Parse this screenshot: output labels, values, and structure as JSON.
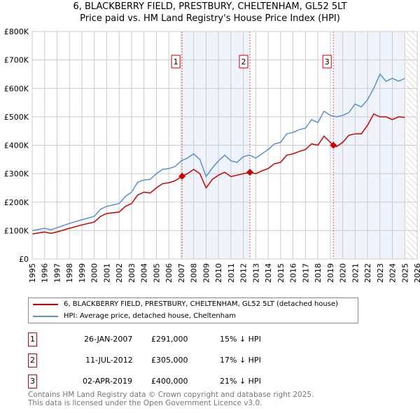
{
  "title": "6, BLACKBERRY FIELD, PRESTBURY, CHELTENHAM, GL52 5LT",
  "subtitle": "Price paid vs. HM Land Registry's House Price Index (HPI)",
  "colors": {
    "price": "#cc0000",
    "hpi": "#5b8fd0",
    "shade": "#eef3fc"
  },
  "chart_data": {
    "type": "line",
    "title": "Price paid vs. HM Land Registry's House Price Index (HPI)",
    "xlim": [
      1995,
      2026
    ],
    "ylim": [
      0,
      800000
    ],
    "xticks": [
      "1995",
      "1996",
      "1997",
      "1998",
      "1999",
      "2000",
      "2001",
      "2002",
      "2003",
      "2004",
      "2005",
      "2006",
      "2007",
      "2008",
      "2009",
      "2010",
      "2011",
      "2012",
      "2013",
      "2014",
      "2015",
      "2016",
      "2017",
      "2018",
      "2019",
      "2020",
      "2021",
      "2022",
      "2023",
      "2024",
      "2025",
      "2026"
    ],
    "yticks": [
      {
        "v": 0,
        "label": "£0"
      },
      {
        "v": 100000,
        "label": "£100K"
      },
      {
        "v": 200000,
        "label": "£200K"
      },
      {
        "v": 300000,
        "label": "£300K"
      },
      {
        "v": 400000,
        "label": "£400K"
      },
      {
        "v": 500000,
        "label": "£500K"
      },
      {
        "v": 600000,
        "label": "£600K"
      },
      {
        "v": 700000,
        "label": "£700K"
      },
      {
        "v": 800000,
        "label": "£800K"
      }
    ],
    "grid": true,
    "series": [
      {
        "name": "6, BLACKBERRY FIELD, PRESTBURY, CHELTENHAM, GL52 5LT (detached house)",
        "x": [
          1995,
          1996,
          1996.5,
          1997,
          1998,
          1999,
          2000,
          2000.5,
          2001,
          2002,
          2002.5,
          2003,
          2003.5,
          2004,
          2004.5,
          2005,
          2005.5,
          2006,
          2006.5,
          2007.07,
          2007.5,
          2008,
          2008.5,
          2009,
          2009.5,
          2010,
          2010.5,
          2011,
          2011.5,
          2012.53,
          2013,
          2013.5,
          2014,
          2014.5,
          2015,
          2015.5,
          2016,
          2016.5,
          2017,
          2017.5,
          2018,
          2018.5,
          2019.25,
          2019.5,
          2020,
          2020.5,
          2021,
          2021.5,
          2022,
          2022.5,
          2023,
          2023.5,
          2024,
          2024.5,
          2025
        ],
        "y": [
          88000,
          95000,
          90000,
          95000,
          108000,
          120000,
          130000,
          150000,
          160000,
          165000,
          185000,
          195000,
          225000,
          235000,
          232000,
          250000,
          265000,
          268000,
          275000,
          291000,
          300000,
          315000,
          300000,
          250000,
          280000,
          295000,
          305000,
          290000,
          295000,
          305000,
          300000,
          310000,
          318000,
          335000,
          340000,
          365000,
          370000,
          378000,
          385000,
          405000,
          400000,
          432000,
          400000,
          395000,
          410000,
          435000,
          440000,
          440000,
          470000,
          510000,
          500000,
          500000,
          490000,
          500000,
          498000
        ]
      },
      {
        "name": "HPI: Average price, detached house, Cheltenham",
        "x": [
          1995,
          1996,
          1996.5,
          1997,
          1998,
          1999,
          2000,
          2000.5,
          2001,
          2002,
          2002.5,
          2003,
          2003.5,
          2004,
          2004.5,
          2005,
          2005.5,
          2006,
          2006.5,
          2007,
          2007.5,
          2008,
          2008.5,
          2009,
          2009.5,
          2010,
          2010.5,
          2011,
          2011.5,
          2012,
          2012.5,
          2013,
          2013.5,
          2014,
          2014.5,
          2015,
          2015.5,
          2016,
          2016.5,
          2017,
          2017.5,
          2018,
          2018.5,
          2019,
          2019.5,
          2020,
          2020.5,
          2021,
          2021.5,
          2022,
          2022.5,
          2023,
          2023.5,
          2024,
          2024.5,
          2025
        ],
        "y": [
          100000,
          108000,
          103000,
          110000,
          125000,
          138000,
          150000,
          175000,
          185000,
          195000,
          220000,
          235000,
          270000,
          278000,
          280000,
          300000,
          315000,
          318000,
          325000,
          345000,
          355000,
          370000,
          350000,
          290000,
          320000,
          345000,
          365000,
          345000,
          340000,
          360000,
          365000,
          355000,
          370000,
          385000,
          405000,
          410000,
          440000,
          445000,
          455000,
          460000,
          490000,
          480000,
          520000,
          505000,
          500000,
          505000,
          515000,
          545000,
          535000,
          560000,
          600000,
          650000,
          625000,
          635000,
          625000,
          635000
        ]
      }
    ],
    "sales": [
      {
        "id": "1",
        "x": 2007.07,
        "y": 291000
      },
      {
        "id": "2",
        "x": 2012.53,
        "y": 305000
      },
      {
        "id": "3",
        "x": 2019.25,
        "y": 400000
      }
    ],
    "shaded": [
      [
        2007.07,
        2012.53
      ],
      [
        2019.25,
        2025.0
      ]
    ],
    "hatched_from": 2025.1
  },
  "legend": {
    "price": "6, BLACKBERRY FIELD, PRESTBURY, CHELTENHAM, GL52 5LT (detached house)",
    "hpi": "HPI: Average price, detached house, Cheltenham"
  },
  "sales_table": [
    {
      "id": "1",
      "date": "26-JAN-2007",
      "price": "£291,000",
      "diff": "15% ↓ HPI"
    },
    {
      "id": "2",
      "date": "11-JUL-2012",
      "price": "£305,000",
      "diff": "17% ↓ HPI"
    },
    {
      "id": "3",
      "date": "02-APR-2019",
      "price": "£400,000",
      "diff": "21% ↓ HPI"
    }
  ],
  "footer": {
    "line1": "Contains HM Land Registry data © Crown copyright and database right 2025.",
    "line2": "This data is licensed under the Open Government Licence v3.0."
  }
}
